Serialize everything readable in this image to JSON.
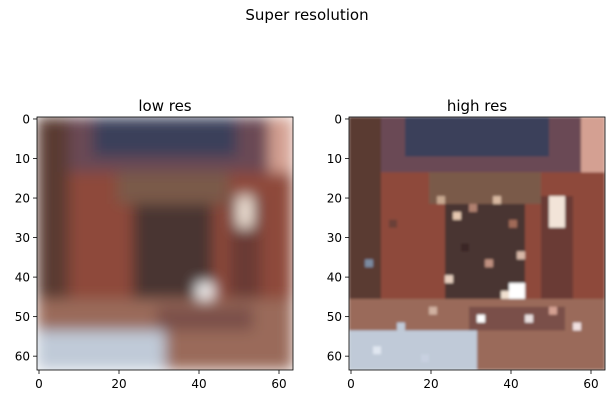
{
  "figure": {
    "suptitle": "Super resolution"
  },
  "chart_data": [
    {
      "type": "heatmap",
      "title": "low res",
      "xlabel": "",
      "ylabel": "",
      "xlim": [
        -0.5,
        63.5
      ],
      "ylim": [
        63.5,
        -0.5
      ],
      "xticks": [
        0,
        20,
        40,
        60
      ],
      "yticks": [
        0,
        10,
        20,
        30,
        40,
        50,
        60
      ],
      "grid": false,
      "image": "blurry RGB image of a church interior (altar, columns, lights), 64x64 pixels"
    },
    {
      "type": "heatmap",
      "title": "high res",
      "xlabel": "",
      "ylabel": "",
      "xlim": [
        -0.5,
        63.5
      ],
      "ylim": [
        63.5,
        -0.5
      ],
      "xticks": [
        0,
        20,
        40,
        60
      ],
      "yticks": [
        0,
        10,
        20,
        30,
        40,
        50,
        60
      ],
      "grid": false,
      "image": "sharpened RGB image of the same church interior with fine ornate detail, 64x64 pixels"
    }
  ],
  "palette": {
    "dark_blue": "#3a3f5a",
    "plum": "#6b4a55",
    "rust": "#a85a44",
    "brick": "#8e4a3a",
    "brown": "#5a3a30",
    "pink_light": "#d4a092",
    "cream": "#f2e4d8",
    "white": "#ffffff",
    "grey_blue": "#7c8aa0",
    "pale_blue": "#c0cad8"
  }
}
